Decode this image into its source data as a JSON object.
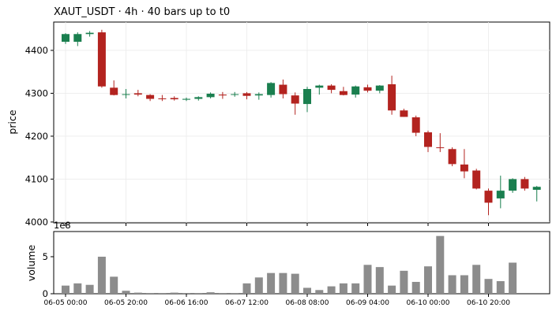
{
  "chart_data": {
    "type": "candlestick",
    "title": "XAUT_USDT  ·  4h  ·  40 bars up to t0",
    "price_panel": {
      "ylabel": "price",
      "ylim": [
        3998,
        4466
      ],
      "yticks": [
        4000,
        4100,
        4200,
        4300,
        4400
      ],
      "grid": true
    },
    "volume_panel": {
      "ylabel": "volume",
      "offset_label": "1e8",
      "ylim": [
        0,
        8.4
      ],
      "yticks": [
        0,
        5
      ]
    },
    "x_tick_labels": [
      {
        "index": 0,
        "label": "06-05 00:00"
      },
      {
        "index": 5,
        "label": "06-05 20:00"
      },
      {
        "index": 10,
        "label": "06-06 16:00"
      },
      {
        "index": 15,
        "label": "06-07 12:00"
      },
      {
        "index": 20,
        "label": "06-08 08:00"
      },
      {
        "index": 25,
        "label": "06-09 04:00"
      },
      {
        "index": 30,
        "label": "06-10 00:00"
      },
      {
        "index": 35,
        "label": "06-10 20:00"
      }
    ],
    "colors": {
      "up": "#1a7f4f",
      "down": "#b3231f",
      "volume": "#8c8c8c"
    },
    "candles": [
      {
        "o": 4420,
        "h": 4440,
        "l": 4415,
        "c": 4438
      },
      {
        "o": 4420,
        "h": 4442,
        "l": 4410,
        "c": 4438
      },
      {
        "o": 4438,
        "h": 4445,
        "l": 4432,
        "c": 4441
      },
      {
        "o": 4442,
        "h": 4448,
        "l": 4313,
        "c": 4316
      },
      {
        "o": 4313,
        "h": 4330,
        "l": 4295,
        "c": 4296
      },
      {
        "o": 4297,
        "h": 4310,
        "l": 4288,
        "c": 4298
      },
      {
        "o": 4300,
        "h": 4308,
        "l": 4293,
        "c": 4297
      },
      {
        "o": 4296,
        "h": 4298,
        "l": 4282,
        "c": 4287
      },
      {
        "o": 4288,
        "h": 4296,
        "l": 4282,
        "c": 4287
      },
      {
        "o": 4289,
        "h": 4293,
        "l": 4283,
        "c": 4286
      },
      {
        "o": 4285,
        "h": 4290,
        "l": 4282,
        "c": 4287
      },
      {
        "o": 4287,
        "h": 4293,
        "l": 4283,
        "c": 4291
      },
      {
        "o": 4291,
        "h": 4302,
        "l": 4288,
        "c": 4299
      },
      {
        "o": 4297,
        "h": 4303,
        "l": 4287,
        "c": 4295
      },
      {
        "o": 4297,
        "h": 4303,
        "l": 4292,
        "c": 4298
      },
      {
        "o": 4300,
        "h": 4303,
        "l": 4286,
        "c": 4294
      },
      {
        "o": 4295,
        "h": 4302,
        "l": 4285,
        "c": 4298
      },
      {
        "o": 4296,
        "h": 4326,
        "l": 4290,
        "c": 4324
      },
      {
        "o": 4320,
        "h": 4332,
        "l": 4288,
        "c": 4298
      },
      {
        "o": 4295,
        "h": 4302,
        "l": 4250,
        "c": 4276
      },
      {
        "o": 4275,
        "h": 4315,
        "l": 4256,
        "c": 4310
      },
      {
        "o": 4313,
        "h": 4320,
        "l": 4297,
        "c": 4318
      },
      {
        "o": 4318,
        "h": 4321,
        "l": 4300,
        "c": 4308
      },
      {
        "o": 4305,
        "h": 4315,
        "l": 4295,
        "c": 4296
      },
      {
        "o": 4297,
        "h": 4318,
        "l": 4290,
        "c": 4316
      },
      {
        "o": 4314,
        "h": 4320,
        "l": 4302,
        "c": 4306
      },
      {
        "o": 4306,
        "h": 4319,
        "l": 4300,
        "c": 4318
      },
      {
        "o": 4321,
        "h": 4341,
        "l": 4250,
        "c": 4260
      },
      {
        "o": 4260,
        "h": 4264,
        "l": 4245,
        "c": 4245
      },
      {
        "o": 4244,
        "h": 4248,
        "l": 4200,
        "c": 4208
      },
      {
        "o": 4209,
        "h": 4213,
        "l": 4163,
        "c": 4175
      },
      {
        "o": 4174,
        "h": 4207,
        "l": 4163,
        "c": 4173
      },
      {
        "o": 4170,
        "h": 4174,
        "l": 4130,
        "c": 4135
      },
      {
        "o": 4134,
        "h": 4170,
        "l": 4102,
        "c": 4118
      },
      {
        "o": 4120,
        "h": 4124,
        "l": 4076,
        "c": 4078
      },
      {
        "o": 4073,
        "h": 4078,
        "l": 4016,
        "c": 4045
      },
      {
        "o": 4055,
        "h": 4108,
        "l": 4032,
        "c": 4073
      },
      {
        "o": 4073,
        "h": 4102,
        "l": 4068,
        "c": 4100
      },
      {
        "o": 4100,
        "h": 4105,
        "l": 4073,
        "c": 4078
      },
      {
        "o": 4075,
        "h": 4084,
        "l": 4048,
        "c": 4082
      }
    ],
    "volumes": [
      1.1,
      1.4,
      1.2,
      5.0,
      2.3,
      0.4,
      0.15,
      0.1,
      0.1,
      0.15,
      0.1,
      0.1,
      0.2,
      0.1,
      0.1,
      1.4,
      2.2,
      2.8,
      2.8,
      2.7,
      0.8,
      0.5,
      1.0,
      1.4,
      1.4,
      3.9,
      3.6,
      1.1,
      3.1,
      1.6,
      3.7,
      7.8,
      2.5,
      2.5,
      3.9,
      2.0,
      1.7,
      4.2,
      0,
      0
    ]
  }
}
